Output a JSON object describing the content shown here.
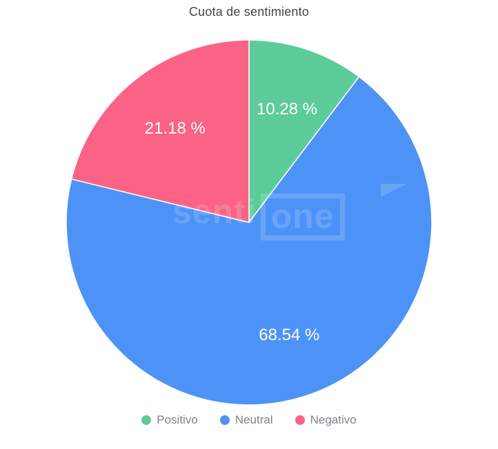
{
  "title": "Cuota de sentimiento",
  "chart_data": {
    "type": "pie",
    "title": "Cuota de sentimiento",
    "categories": [
      "Positivo",
      "Neutral",
      "Negativo"
    ],
    "values": [
      10.28,
      68.54,
      21.18
    ],
    "value_labels": [
      "10.28 %",
      "68.54 %",
      "21.18 %"
    ],
    "colors": [
      "#5ECB9B",
      "#4D93F7",
      "#FA6386"
    ],
    "units": "%",
    "start_angle_deg": 0,
    "direction": "clockwise",
    "legend_position": "bottom-center",
    "label_color": "#FFFFFF"
  },
  "legend": {
    "items": [
      {
        "label": "Positivo",
        "color": "#5ECB9B"
      },
      {
        "label": "Neutral",
        "color": "#4D93F7"
      },
      {
        "label": "Negativo",
        "color": "#FA6386"
      }
    ]
  },
  "watermark": {
    "part1": "senti",
    "part2": "one"
  },
  "colors": {
    "title_text": "#444444",
    "legend_text": "#80808A",
    "background": "#FFFFFF"
  }
}
